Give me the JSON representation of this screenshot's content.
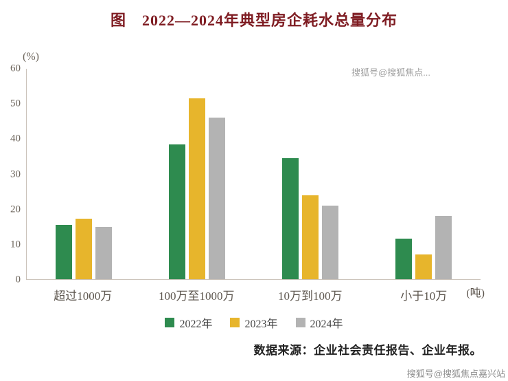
{
  "title": "图　2022—2024年典型房企耗水总量分布",
  "source_note": "数据来源：企业社会责任报告、企业年报。",
  "watermark_top": "搜狐号@搜狐焦点...",
  "watermark_bottom": "搜狐号@搜狐焦点嘉兴站",
  "chart_data": {
    "type": "bar",
    "categories": [
      "超过1000万",
      "100万至1000万",
      "10万到100万",
      "小于10万"
    ],
    "series": [
      {
        "name": "2022年",
        "color": "#2e8b4f",
        "values": [
          15.5,
          38.5,
          34.5,
          11.5
        ]
      },
      {
        "name": "2023年",
        "color": "#e7b52c",
        "values": [
          17.2,
          51.5,
          24,
          7
        ]
      },
      {
        "name": "2024年",
        "color": "#b3b3b3",
        "values": [
          15,
          46,
          21,
          18
        ]
      }
    ],
    "ylabel": "(%)",
    "xunit": "(吨)",
    "ylim": [
      0,
      60
    ],
    "yticks": [
      0,
      10,
      20,
      30,
      40,
      50,
      60
    ],
    "grid": false,
    "legend_position": "bottom"
  }
}
